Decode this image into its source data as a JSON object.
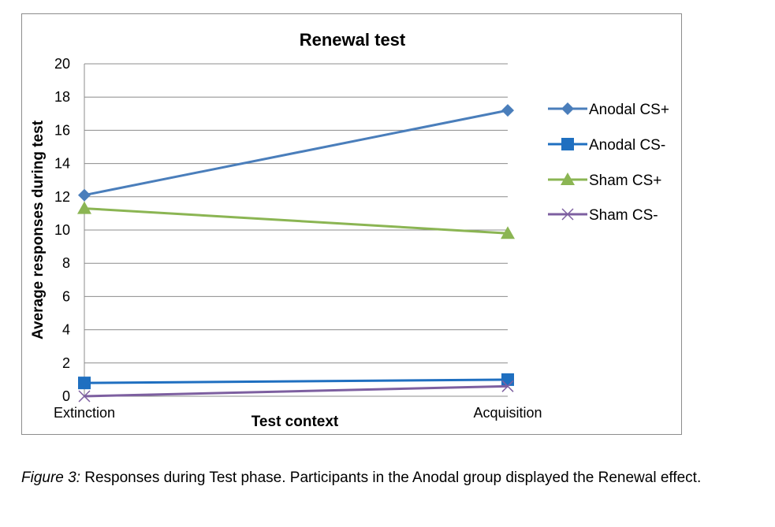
{
  "chart_data": {
    "type": "line",
    "title": "Renewal test",
    "xlabel": "Test context",
    "ylabel": "Average responses during test",
    "categories": [
      "Extinction",
      "Acquisition"
    ],
    "ylim": [
      0,
      20
    ],
    "yticks": [
      0,
      2,
      4,
      6,
      8,
      10,
      12,
      14,
      16,
      18,
      20
    ],
    "grid": true,
    "legend_position": "right",
    "series": [
      {
        "name": "Anodal CS+",
        "values": [
          12.1,
          17.2
        ],
        "color": "#4a7ebb",
        "marker": "diamond"
      },
      {
        "name": "Anodal CS-",
        "values": [
          0.8,
          1.0
        ],
        "color": "#1f6fc0",
        "marker": "square"
      },
      {
        "name": "Sham CS+",
        "values": [
          11.3,
          9.8
        ],
        "color": "#8bb553",
        "marker": "triangle"
      },
      {
        "name": "Sham CS-",
        "values": [
          0.0,
          0.6
        ],
        "color": "#7d5fa0",
        "marker": "x"
      }
    ]
  },
  "caption": {
    "label": "Figure 3:",
    "text": " Responses during Test phase. Participants in the Anodal group displayed the Renewal effect."
  }
}
